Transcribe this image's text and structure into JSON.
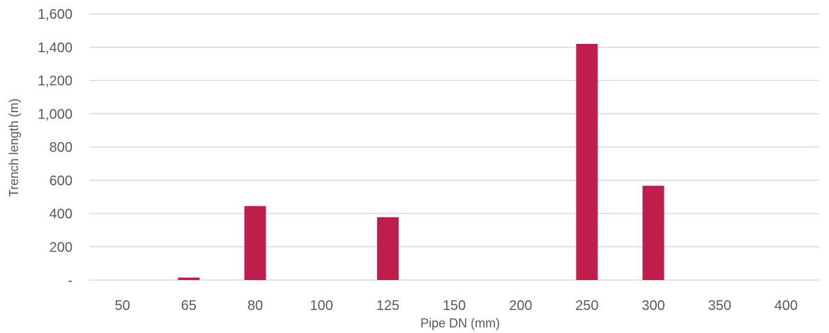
{
  "chart_data": {
    "type": "bar",
    "categories": [
      "50",
      "65",
      "80",
      "100",
      "125",
      "150",
      "200",
      "250",
      "300",
      "350",
      "400"
    ],
    "values": [
      0,
      15,
      445,
      0,
      378,
      0,
      0,
      1420,
      567,
      0,
      0
    ],
    "xlabel": "Pipe DN (mm)",
    "ylabel": "Trench length (m)",
    "ylim": [
      0,
      1600
    ],
    "yticks": [
      0,
      200,
      400,
      600,
      800,
      1000,
      1200,
      1400,
      1600
    ],
    "ytick_labels": [
      "-",
      "200",
      "400",
      "600",
      "800",
      "1,000",
      "1,200",
      "1,400",
      "1,600"
    ],
    "bar_color": "#be1e4b",
    "grid": true,
    "legend": "none"
  }
}
